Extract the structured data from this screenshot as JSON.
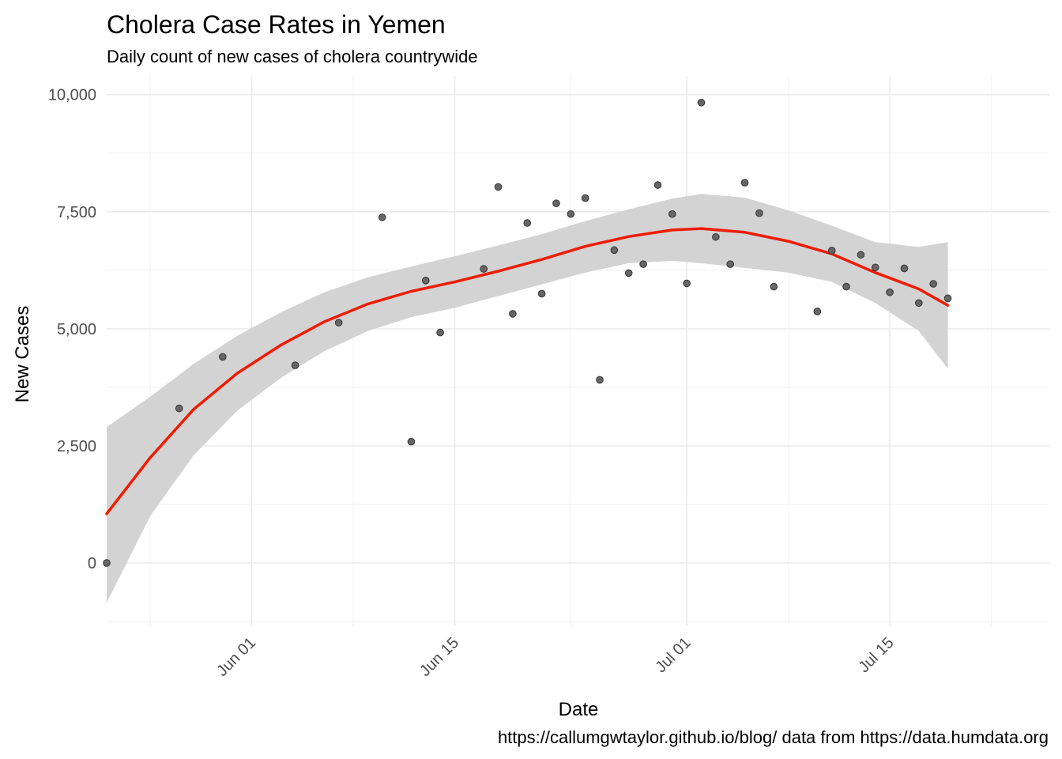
{
  "chart_data": {
    "type": "scatter",
    "title": "Cholera Case Rates in Yemen",
    "subtitle": "Daily count of new cases of cholera countrywide",
    "xlabel": "Date",
    "ylabel": "New Cases",
    "caption": "https://callumgwtaylor.github.io/blog/ data from https://data.humdata.org",
    "x_axis_type": "date",
    "xlim": [
      "2017-05-22",
      "2017-07-26"
    ],
    "ylim": [
      -1350,
      10400
    ],
    "x_ticks": [
      {
        "date": "2017-06-01",
        "label": "Jun 01"
      },
      {
        "date": "2017-06-15",
        "label": "Jun 15"
      },
      {
        "date": "2017-07-01",
        "label": "Jul 01"
      },
      {
        "date": "2017-07-15",
        "label": "Jul 15"
      }
    ],
    "x_minor_ticks": [
      "2017-05-25",
      "2017-06-08",
      "2017-06-23",
      "2017-07-08",
      "2017-07-22"
    ],
    "y_ticks": [
      {
        "value": 0,
        "label": "0"
      },
      {
        "value": 2500,
        "label": "2,500"
      },
      {
        "value": 5000,
        "label": "5,000"
      },
      {
        "value": 7500,
        "label": "7,500"
      },
      {
        "value": 10000,
        "label": "10,000"
      }
    ],
    "y_minor_ticks": [
      -1250,
      1250,
      3750,
      6250,
      8750
    ],
    "grid": true,
    "legend": "none",
    "point_color": "#666666",
    "smooth_color": "#ee1c00",
    "band_color": "#d3d3d3",
    "points": [
      {
        "x": "2017-05-22",
        "y": 0
      },
      {
        "x": "2017-05-27",
        "y": 3300
      },
      {
        "x": "2017-05-30",
        "y": 4400
      },
      {
        "x": "2017-06-04",
        "y": 4220
      },
      {
        "x": "2017-06-07",
        "y": 5130
      },
      {
        "x": "2017-06-10",
        "y": 7380
      },
      {
        "x": "2017-06-12",
        "y": 2590
      },
      {
        "x": "2017-06-13",
        "y": 6030
      },
      {
        "x": "2017-06-14",
        "y": 4920
      },
      {
        "x": "2017-06-17",
        "y": 6280
      },
      {
        "x": "2017-06-18",
        "y": 8030
      },
      {
        "x": "2017-06-19",
        "y": 5320
      },
      {
        "x": "2017-06-20",
        "y": 7260
      },
      {
        "x": "2017-06-21",
        "y": 5750
      },
      {
        "x": "2017-06-22",
        "y": 7680
      },
      {
        "x": "2017-06-23",
        "y": 7450
      },
      {
        "x": "2017-06-24",
        "y": 7790
      },
      {
        "x": "2017-06-25",
        "y": 3910
      },
      {
        "x": "2017-06-26",
        "y": 6680
      },
      {
        "x": "2017-06-27",
        "y": 6190
      },
      {
        "x": "2017-06-28",
        "y": 6380
      },
      {
        "x": "2017-06-29",
        "y": 8070
      },
      {
        "x": "2017-06-30",
        "y": 7450
      },
      {
        "x": "2017-07-01",
        "y": 5970
      },
      {
        "x": "2017-07-02",
        "y": 9830
      },
      {
        "x": "2017-07-03",
        "y": 6960
      },
      {
        "x": "2017-07-04",
        "y": 6380
      },
      {
        "x": "2017-07-05",
        "y": 8120
      },
      {
        "x": "2017-07-06",
        "y": 7470
      },
      {
        "x": "2017-07-07",
        "y": 5900
      },
      {
        "x": "2017-07-10",
        "y": 5370
      },
      {
        "x": "2017-07-11",
        "y": 6670
      },
      {
        "x": "2017-07-12",
        "y": 5900
      },
      {
        "x": "2017-07-13",
        "y": 6580
      },
      {
        "x": "2017-07-14",
        "y": 6310
      },
      {
        "x": "2017-07-15",
        "y": 5780
      },
      {
        "x": "2017-07-16",
        "y": 6290
      },
      {
        "x": "2017-07-17",
        "y": 5550
      },
      {
        "x": "2017-07-18",
        "y": 5960
      },
      {
        "x": "2017-07-19",
        "y": 5650
      }
    ],
    "smooth": [
      {
        "x": "2017-05-22",
        "fit": 1050,
        "lower": -850,
        "upper": 2900
      },
      {
        "x": "2017-05-25",
        "fit": 2250,
        "lower": 1000,
        "upper": 3550
      },
      {
        "x": "2017-05-28",
        "fit": 3280,
        "lower": 2300,
        "upper": 4250
      },
      {
        "x": "2017-05-31",
        "fit": 4050,
        "lower": 3250,
        "upper": 4850
      },
      {
        "x": "2017-06-03",
        "fit": 4650,
        "lower": 3950,
        "upper": 5350
      },
      {
        "x": "2017-06-06",
        "fit": 5150,
        "lower": 4520,
        "upper": 5780
      },
      {
        "x": "2017-06-09",
        "fit": 5530,
        "lower": 4950,
        "upper": 6100
      },
      {
        "x": "2017-06-12",
        "fit": 5800,
        "lower": 5250,
        "upper": 6330
      },
      {
        "x": "2017-06-15",
        "fit": 6000,
        "lower": 5450,
        "upper": 6550
      },
      {
        "x": "2017-06-18",
        "fit": 6230,
        "lower": 5700,
        "upper": 6780
      },
      {
        "x": "2017-06-21",
        "fit": 6480,
        "lower": 5950,
        "upper": 7020
      },
      {
        "x": "2017-06-24",
        "fit": 6760,
        "lower": 6200,
        "upper": 7300
      },
      {
        "x": "2017-06-27",
        "fit": 6970,
        "lower": 6400,
        "upper": 7550
      },
      {
        "x": "2017-06-30",
        "fit": 7110,
        "lower": 6450,
        "upper": 7780
      },
      {
        "x": "2017-07-02",
        "fit": 7140,
        "lower": 6400,
        "upper": 7880
      },
      {
        "x": "2017-07-05",
        "fit": 7060,
        "lower": 6300,
        "upper": 7800
      },
      {
        "x": "2017-07-08",
        "fit": 6870,
        "lower": 6200,
        "upper": 7530
      },
      {
        "x": "2017-07-11",
        "fit": 6600,
        "lower": 6000,
        "upper": 7200
      },
      {
        "x": "2017-07-14",
        "fit": 6200,
        "lower": 5550,
        "upper": 6850
      },
      {
        "x": "2017-07-17",
        "fit": 5850,
        "lower": 4950,
        "upper": 6750
      },
      {
        "x": "2017-07-19",
        "fit": 5500,
        "lower": 4150,
        "upper": 6850
      }
    ]
  }
}
